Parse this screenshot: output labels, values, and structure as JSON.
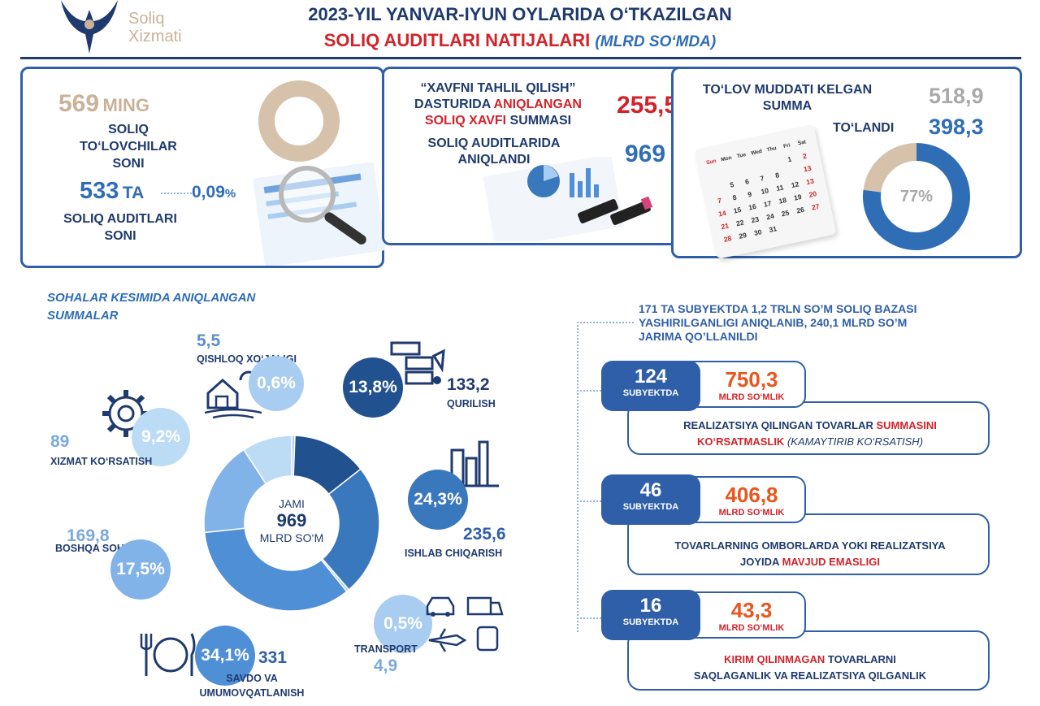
{
  "logo": {
    "line1": "Soliq",
    "line2": "Xizmati"
  },
  "header": {
    "title_line1": "2023-YIL YANVAR-IYUN OYLARIDA O‘TKAZILGAN",
    "title_line2_red": "SOLIQ AUDITLARI NATIJALARI",
    "title_line2_unit": "(MLRD SO‘MDA)"
  },
  "panel1": {
    "taxpayers_value": "569",
    "taxpayers_unit": "MING",
    "taxpayers_label_1": "SOLIQ",
    "taxpayers_label_2": "TO‘LOVCHILAR",
    "taxpayers_label_3": "SONI",
    "audits_value": "533",
    "audits_unit": "TA",
    "audits_percent": "0,09",
    "audits_percent_sign": "%",
    "audits_label_1": "SOLIQ AUDITLARI",
    "audits_label_2": "SONI"
  },
  "panel2": {
    "line1": "“XAVFNI TAHLIL QILISH”",
    "line2_a": "DASTURIDA ",
    "line2_red": "ANIQLANGAN",
    "line3_red": "SOLIQ XAVFI",
    "line3_b": " SUMMASI",
    "risk_value": "255,5",
    "audits_found_1": "SOLIQ AUDITLARIDA",
    "audits_found_2": "ANIQLANDI",
    "found_value": "969"
  },
  "panel3": {
    "due_label_1": "TO‘LOV MUDDATI KELGAN",
    "due_label_2": "SUMMA",
    "due_value": "518,9",
    "paid_label": "TO‘LANDI",
    "paid_value": "398,3",
    "paid_percent_label": "77%",
    "paid_fraction": 0.77,
    "calendar_days": [
      "Sun",
      "Mon",
      "Tue",
      "Wed",
      "Thu",
      "Fri",
      "Sat"
    ],
    "calendar_rows": [
      [
        "",
        "",
        "",
        "",
        "",
        "1",
        "2"
      ],
      [
        "",
        "5",
        "6",
        "7",
        "8",
        "",
        "13"
      ],
      [
        "7",
        "8",
        "9",
        "10",
        "11",
        "12",
        "13"
      ],
      [
        "14",
        "15",
        "16",
        "17",
        "18",
        "19",
        "20"
      ],
      [
        "21",
        "22",
        "23",
        "24",
        "25",
        "26",
        "27"
      ],
      [
        "28",
        "29",
        "30",
        "31",
        "",
        "",
        ""
      ]
    ]
  },
  "sectors": {
    "heading_1": "SOHALAR KESIMIDA ANIQLANGAN",
    "heading_2": "SUMMALAR",
    "total_label": "JAMI",
    "total_value": "969",
    "total_unit": "MLRD SO‘M",
    "items": [
      {
        "name": "QISHLOQ XO‘JALIGI",
        "value": "5,5",
        "percent": "0,6%",
        "share": 0.6,
        "color": "#a9cdf0"
      },
      {
        "name": "QURILISH",
        "value": "133,2",
        "percent": "13,8%",
        "share": 13.8,
        "color": "#21518e"
      },
      {
        "name": "ISHLAB CHIQARISH",
        "value": "235,6",
        "percent": "24,3%",
        "share": 24.3,
        "color": "#3a78bd"
      },
      {
        "name": "TRANSPORT",
        "value": "4,9",
        "percent": "0,5%",
        "share": 0.5,
        "color": "#a9cdf0"
      },
      {
        "name_1": "SAVDO VA",
        "name_2": "UMUMOVQATLANISH",
        "value": "331",
        "percent": "34,1%",
        "share": 34.1,
        "color": "#4f8fd6"
      },
      {
        "name": "BOSHQA SOHALAR",
        "value": "169,8",
        "percent": "17,5%",
        "share": 17.5,
        "color": "#82b3e8"
      },
      {
        "name": "XIZMAT KO‘RSATISH",
        "value": "89",
        "percent": "9,2%",
        "share": 9.2,
        "color": "#bcdcf6"
      }
    ]
  },
  "findings": {
    "intro_1": "171 TA SUBYEKTDA  1,2 TRLN SO’M SOLIQ BAZASI",
    "intro_2": "YASHIRILGANLIGI ANIQLANIB, 240,1 MLRD SO’M",
    "intro_3": "JARIMA QO’LLANILDI",
    "subject_label": "SUBYEKTDA",
    "amount_label": "MLRD SO‘MLIK",
    "items": [
      {
        "count": "124",
        "amount": "750,3",
        "desc_1a": "REALIZATSIYA QILINGAN TOVARLAR ",
        "desc_1red": "SUMMASINI",
        "desc_2red": "KO‘RSATMASLIK",
        "desc_2b": " (KAMAYTIRIB KO‘RSATISH)"
      },
      {
        "count": "46",
        "amount": "406,8",
        "desc_1a": "TOVARLARNING OMBORLARDA YOKI REALIZATSIYA",
        "desc_2a": "JOYIDA ",
        "desc_2red": "MAVJUD EMASLIGI"
      },
      {
        "count": "16",
        "amount": "43,3",
        "desc_1red": "KIRIM QILINMAGAN",
        "desc_1b": " TOVARLARNI",
        "desc_2a": "SAQLAGANLIK VA REALIZATSIYA QILGANLIK"
      }
    ]
  }
}
